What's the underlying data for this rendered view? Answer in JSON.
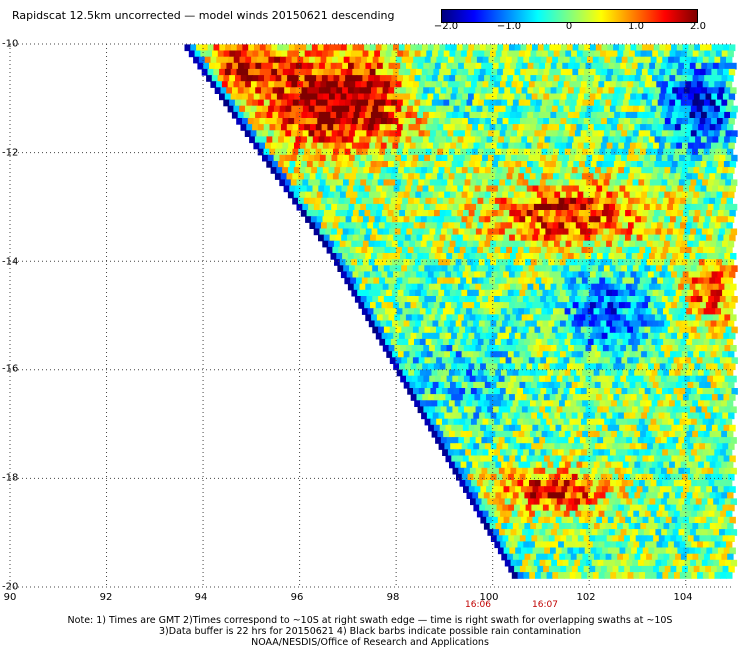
{
  "title": "Rapidscat 12.5km uncorrected — model winds 20150621 descending",
  "colorbar": {
    "ticks": [
      "−2.0",
      "−1.0",
      "0",
      "1.0",
      "2.0"
    ],
    "values": [
      -2.0,
      -1.0,
      0,
      1.0,
      2.0
    ],
    "colors": [
      "#00007f",
      "#0000ff",
      "#0080ff",
      "#00ffff",
      "#80ff80",
      "#ffff00",
      "#ff8000",
      "#ff0000",
      "#7f0000"
    ]
  },
  "map": {
    "latitude_labels": [
      "-10",
      "-12",
      "-14",
      "-16",
      "-18",
      "-20"
    ],
    "latitude_values": [
      -10,
      -12,
      -14,
      -16,
      -18,
      -20
    ],
    "longitude_labels": [
      "90",
      "92",
      "94",
      "96",
      "98",
      "100",
      "102",
      "104"
    ],
    "longitude_values": [
      90,
      92,
      94,
      96,
      98,
      100,
      102,
      104
    ],
    "lon_range": [
      90,
      105
    ],
    "lat_range": [
      -20,
      -10
    ],
    "grid_lines": "dotted",
    "swath_times": [
      "16:06",
      "16:07"
    ]
  },
  "notes": [
    "Note: 1) Times are GMT 2)Times correspond to ~10S at right swath edge — time is right swath for overlapping swaths at ~10S",
    "3)Data buffer is 22 hrs for 20150621 4) Black barbs indicate possible rain contamination",
    "NOAA/NESDIS/Office of Research and Applications"
  ]
}
